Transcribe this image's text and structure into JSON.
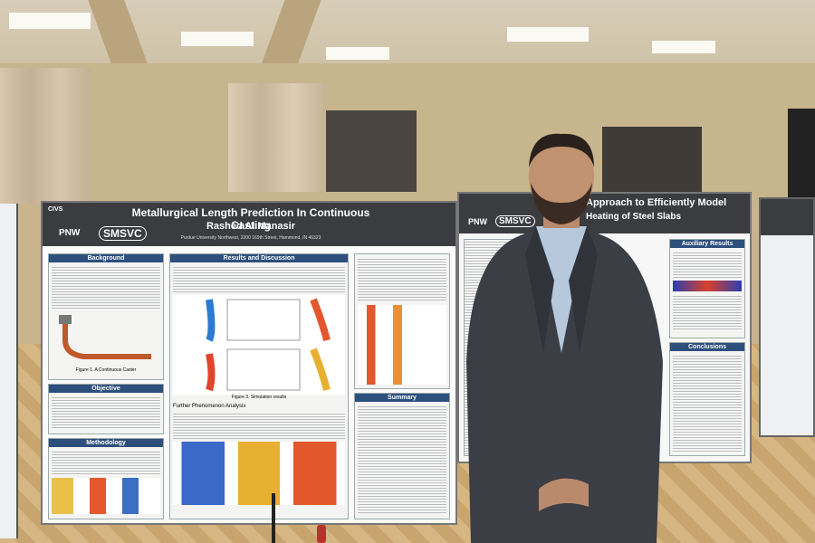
{
  "scene": {
    "poster_main": {
      "title": "Metallurgical Length Prediction In Continuous Casting",
      "author": "Rashed Al Manasir",
      "affiliation": "Purdue University Northwest, 2200 169th Street, Hammond, IN 46323",
      "logos": [
        "PNW",
        "SMSVC",
        "CIVS"
      ],
      "sections": [
        "Background",
        "Results and Discussion",
        "Objective",
        "Methodology",
        "Summary"
      ],
      "subheading": "Further Phenomenon Analysis",
      "figure_captions": [
        "Figure 1. A Continuous Caster",
        "Figure 3. Simulation results"
      ]
    },
    "poster_right": {
      "title_fragment": "Approach to Efficiently Model",
      "subtitle_fragment": "Heating of Steel Slabs",
      "logos": [
        "PNW",
        "SMSVC"
      ],
      "sections": [
        "Auxiliary Results",
        "Conclusions"
      ]
    }
  }
}
